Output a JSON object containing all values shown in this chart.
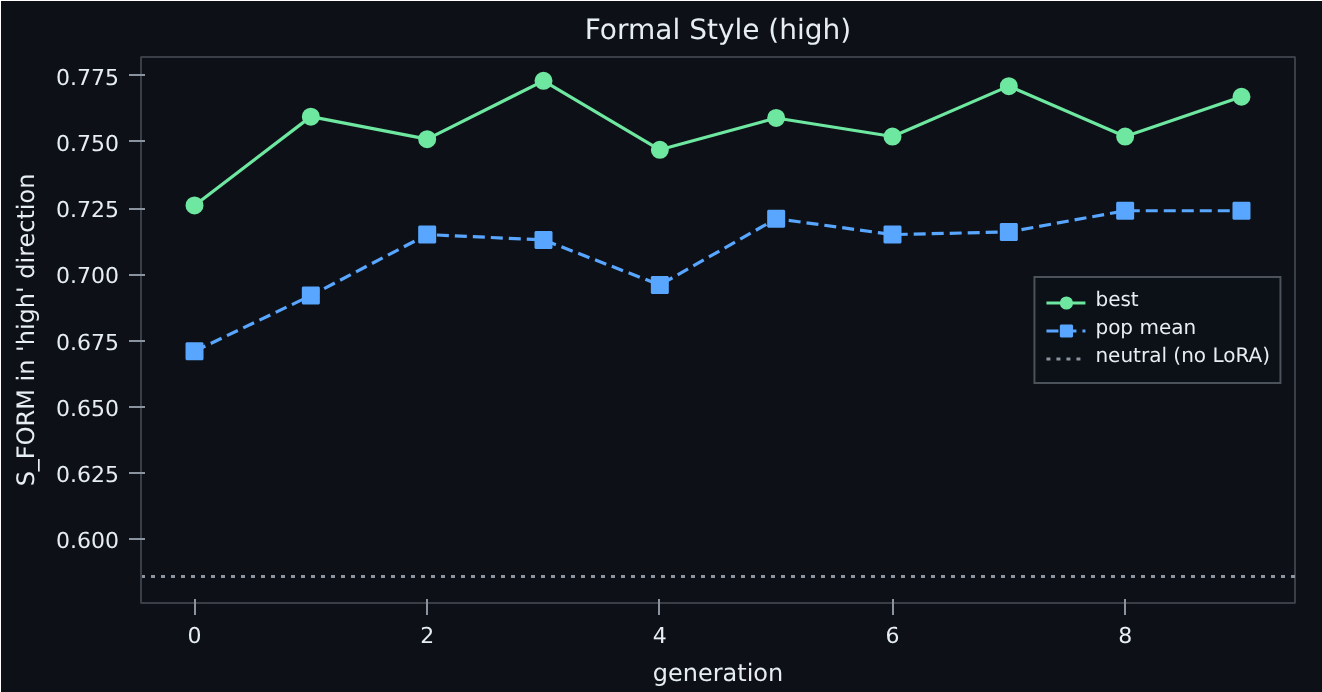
{
  "chart_data": {
    "type": "line",
    "title": "Formal Style (high)",
    "xlabel": "generation",
    "ylabel": "S_FORM in 'high' direction",
    "x": [
      0,
      1,
      2,
      3,
      4,
      5,
      6,
      7,
      8,
      9
    ],
    "series": [
      {
        "name": "best",
        "color": "#6ee7a0",
        "marker": "circle",
        "line_style": "solid",
        "values": [
          0.726,
          0.7595,
          0.751,
          0.773,
          0.747,
          0.759,
          0.752,
          0.771,
          0.752,
          0.767
        ]
      },
      {
        "name": "pop mean",
        "color": "#58a6ff",
        "marker": "square",
        "line_style": "dashed",
        "values": [
          0.671,
          0.692,
          0.715,
          0.713,
          0.696,
          0.721,
          0.715,
          0.716,
          0.724,
          0.724
        ]
      }
    ],
    "ref_lines": [
      {
        "axis": "y",
        "value": 0.586,
        "label": "neutral (no LoRA)",
        "color": "#8b949e",
        "line_style": "dotted"
      }
    ],
    "xlim": [
      -0.46,
      9.46
    ],
    "ylim": [
      0.576,
      0.782
    ],
    "xticks": [
      0,
      2,
      4,
      6,
      8
    ],
    "yticks": [
      {
        "value": 0.6,
        "label": "0.600"
      },
      0.625,
      {
        "value": 0.65,
        "label": "0.650"
      },
      0.675,
      {
        "value": 0.7,
        "label": "0.700"
      },
      0.725,
      {
        "value": 0.75,
        "label": "0.750"
      },
      0.775
    ],
    "grid": false,
    "legend": "right"
  }
}
